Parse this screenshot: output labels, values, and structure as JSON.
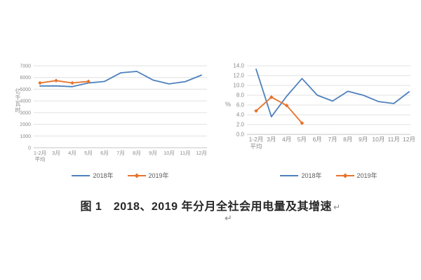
{
  "caption": {
    "text": "图 1　2018、2019 年分月全社会用电量及其增速",
    "return_mark": "↵",
    "stray_return_mark": "↵"
  },
  "colors": {
    "background": "#ffffff",
    "grid": "#e0e0e0",
    "axis_line": "#c6c6c6",
    "tick_text": "#8a8a8a",
    "legend_text": "#595959",
    "caption_text": "#262626",
    "series_2018": "#4e81bd",
    "series_2019": "#e6732c"
  },
  "chart_data": [
    {
      "type": "line",
      "title": "",
      "xlabel": "",
      "ylabel": "亿千瓦时",
      "ylim": [
        0,
        7000
      ],
      "ytick_step": 1000,
      "ytick_labels": [
        "0",
        "1000",
        "2000",
        "3000",
        "4000",
        "5000",
        "6000",
        "7000"
      ],
      "grid": true,
      "legend_position": "bottom",
      "categories": [
        "1-2月\n平均",
        "3月",
        "4月",
        "5月",
        "6月",
        "7月",
        "8月",
        "9月",
        "10月",
        "11月",
        "12月"
      ],
      "series": [
        {
          "name": "2018年",
          "color": "#4e81bd",
          "marker": "none",
          "values": [
            5276,
            5283,
            5217,
            5533,
            5663,
            6400,
            6521,
            5784,
            5452,
            5647,
            6199
          ]
        },
        {
          "name": "2019年",
          "color": "#e6732c",
          "marker": "diamond",
          "values": [
            5532,
            5732,
            5534,
            5665
          ]
        }
      ]
    },
    {
      "type": "line",
      "title": "",
      "xlabel": "",
      "ylabel": "%",
      "ylim": [
        0,
        14
      ],
      "ytick_step": 2,
      "ytick_labels": [
        "0.0",
        "2.0",
        "4.0",
        "6.0",
        "8.0",
        "10.0",
        "12.0",
        "14.0"
      ],
      "grid": true,
      "legend_position": "bottom",
      "categories": [
        "1-2月\n平均",
        "3月",
        "4月",
        "5月",
        "6月",
        "7月",
        "8月",
        "9月",
        "10月",
        "11月",
        "12月"
      ],
      "series": [
        {
          "name": "2018年",
          "color": "#4e81bd",
          "marker": "none",
          "values": [
            13.3,
            3.6,
            7.8,
            11.4,
            8.0,
            6.8,
            8.8,
            8.0,
            6.7,
            6.3,
            8.7
          ]
        },
        {
          "name": "2019年",
          "color": "#e6732c",
          "marker": "diamond",
          "values": [
            4.8,
            7.6,
            5.9,
            2.3
          ]
        }
      ]
    }
  ]
}
